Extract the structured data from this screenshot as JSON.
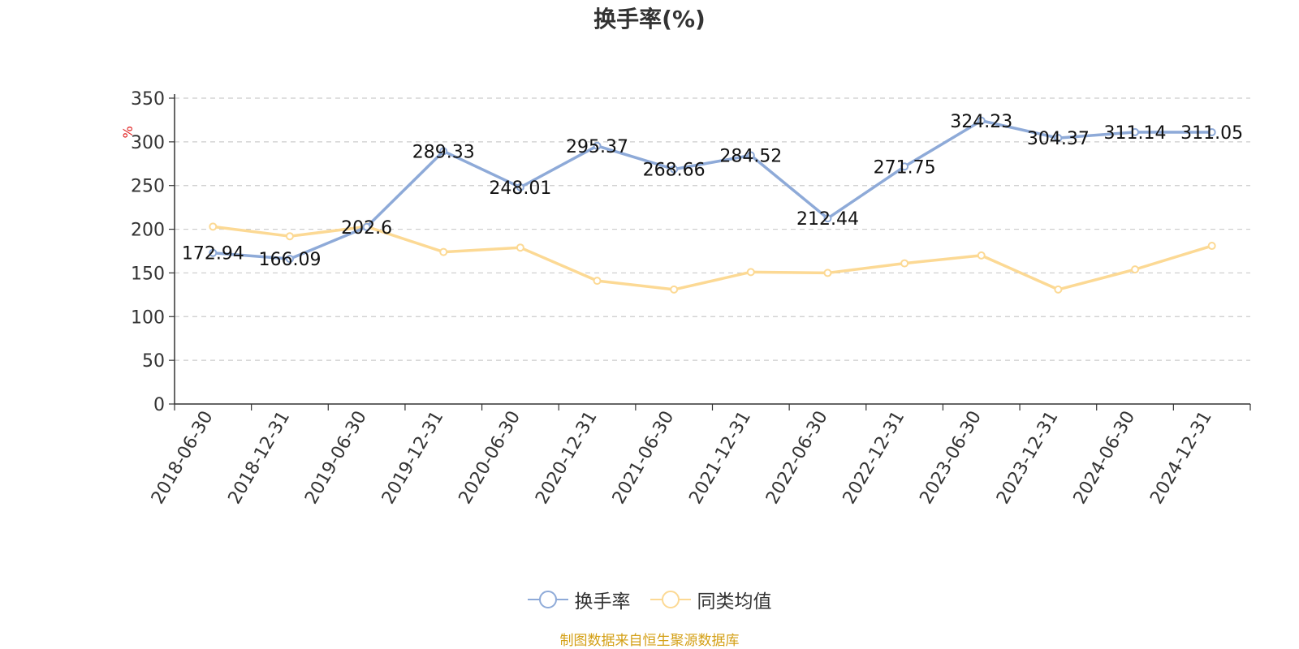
{
  "chart_data": {
    "type": "line",
    "title": "换手率(%)",
    "ylabel": "%",
    "xlabel": "",
    "ylim": [
      0,
      350
    ],
    "yticks": [
      0,
      50,
      100,
      150,
      200,
      250,
      300,
      350
    ],
    "grid": true,
    "legend_position": "bottom",
    "categories": [
      "2018-06-30",
      "2018-12-31",
      "2019-06-30",
      "2019-12-31",
      "2020-06-30",
      "2020-12-31",
      "2021-06-30",
      "2021-12-31",
      "2022-06-30",
      "2022-12-31",
      "2023-06-30",
      "2023-12-31",
      "2024-06-30",
      "2024-12-31"
    ],
    "series": [
      {
        "name": "换手率",
        "color": "#8eaad8",
        "show_labels": true,
        "values": [
          172.94,
          166.09,
          202.6,
          289.33,
          248.01,
          295.37,
          268.66,
          284.52,
          212.44,
          271.75,
          324.23,
          304.37,
          311.14,
          311.05
        ]
      },
      {
        "name": "同类均值",
        "color": "#fcd994",
        "show_labels": false,
        "values": [
          203,
          192,
          203,
          174,
          179,
          141,
          131,
          151,
          150,
          161,
          170,
          131,
          154,
          181
        ]
      }
    ]
  },
  "footer": {
    "source": "制图数据来自恒生聚源数据库"
  }
}
